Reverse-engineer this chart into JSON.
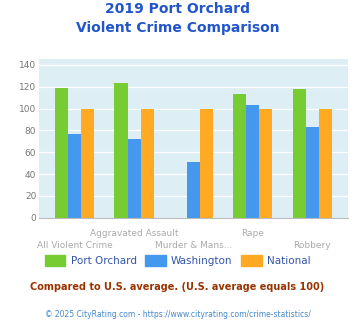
{
  "title_line1": "2019 Port Orchard",
  "title_line2": "Violent Crime Comparison",
  "title_color": "#2255cc",
  "categories": [
    "All Violent Crime",
    "Aggravated Assault",
    "Murder & Mans...",
    "Rape",
    "Robbery"
  ],
  "port_orchard": [
    119,
    123,
    0,
    113,
    118
  ],
  "washington": [
    77,
    72,
    51,
    103,
    83
  ],
  "national": [
    100,
    100,
    100,
    100,
    100
  ],
  "color_port_orchard": "#77cc33",
  "color_washington": "#4499ee",
  "color_national": "#ffaa22",
  "ylim": [
    0,
    145
  ],
  "yticks": [
    0,
    20,
    40,
    60,
    80,
    100,
    120,
    140
  ],
  "legend_labels": [
    "Port Orchard",
    "Washington",
    "National"
  ],
  "legend_text_color": "#3355aa",
  "footnote1": "Compared to U.S. average. (U.S. average equals 100)",
  "footnote2": "© 2025 CityRating.com - https://www.cityrating.com/crime-statistics/",
  "footnote1_color": "#993300",
  "footnote2_color": "#4488cc",
  "bg_color": "#ddeef5",
  "grid_color": "#ffffff",
  "xlabel_color": "#aaaaaa",
  "bar_width": 0.22
}
